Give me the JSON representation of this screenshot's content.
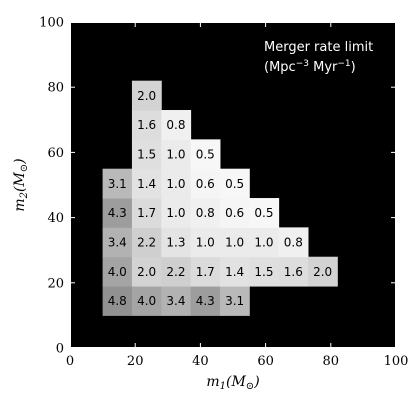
{
  "chart_data": {
    "type": "heatmap",
    "annotation": {
      "line1": "Merger rate limit",
      "line2_prefix": "(Mpc",
      "line2_sup1": "−3",
      "line2_mid": " Myr",
      "line2_sup2": "−1",
      "line2_suffix": ")"
    },
    "xlabel_main": "m",
    "xlabel_sub": "1",
    "xlabel_unit": "(M",
    "xlabel_unit_sub": "⊙",
    "xlabel_close": ")",
    "ylabel_main": "m",
    "ylabel_sub": "2",
    "ylabel_unit": "(M",
    "ylabel_unit_sub": "⊙",
    "ylabel_close": ")",
    "xlim": [
      0,
      100
    ],
    "ylim": [
      0,
      100
    ],
    "xticks": [
      "0",
      "20",
      "40",
      "60",
      "80",
      "100"
    ],
    "yticks": [
      "0",
      "20",
      "40",
      "60",
      "80",
      "100"
    ],
    "background_color": "#000000",
    "cell_size": 9,
    "cells": [
      {
        "x": 10,
        "y": 10,
        "value": "4.8"
      },
      {
        "x": 19,
        "y": 10,
        "value": "4.0"
      },
      {
        "x": 28,
        "y": 10,
        "value": "3.4"
      },
      {
        "x": 37,
        "y": 10,
        "value": "4.3"
      },
      {
        "x": 46,
        "y": 10,
        "value": "3.1"
      },
      {
        "x": 10,
        "y": 19,
        "value": "4.0"
      },
      {
        "x": 19,
        "y": 19,
        "value": "2.0"
      },
      {
        "x": 28,
        "y": 19,
        "value": "2.2"
      },
      {
        "x": 37,
        "y": 19,
        "value": "1.7"
      },
      {
        "x": 46,
        "y": 19,
        "value": "1.4"
      },
      {
        "x": 55,
        "y": 19,
        "value": "1.5"
      },
      {
        "x": 64,
        "y": 19,
        "value": "1.6"
      },
      {
        "x": 73,
        "y": 19,
        "value": "2.0"
      },
      {
        "x": 10,
        "y": 28,
        "value": "3.4"
      },
      {
        "x": 19,
        "y": 28,
        "value": "2.2"
      },
      {
        "x": 28,
        "y": 28,
        "value": "1.3"
      },
      {
        "x": 37,
        "y": 28,
        "value": "1.0"
      },
      {
        "x": 46,
        "y": 28,
        "value": "1.0"
      },
      {
        "x": 55,
        "y": 28,
        "value": "1.0"
      },
      {
        "x": 64,
        "y": 28,
        "value": "0.8"
      },
      {
        "x": 10,
        "y": 37,
        "value": "4.3"
      },
      {
        "x": 19,
        "y": 37,
        "value": "1.7"
      },
      {
        "x": 28,
        "y": 37,
        "value": "1.0"
      },
      {
        "x": 37,
        "y": 37,
        "value": "0.8"
      },
      {
        "x": 46,
        "y": 37,
        "value": "0.6"
      },
      {
        "x": 55,
        "y": 37,
        "value": "0.5"
      },
      {
        "x": 10,
        "y": 46,
        "value": "3.1"
      },
      {
        "x": 19,
        "y": 46,
        "value": "1.4"
      },
      {
        "x": 28,
        "y": 46,
        "value": "1.0"
      },
      {
        "x": 37,
        "y": 46,
        "value": "0.6"
      },
      {
        "x": 46,
        "y": 46,
        "value": "0.5"
      },
      {
        "x": 19,
        "y": 55,
        "value": "1.5"
      },
      {
        "x": 28,
        "y": 55,
        "value": "1.0"
      },
      {
        "x": 37,
        "y": 55,
        "value": "0.5"
      },
      {
        "x": 19,
        "y": 64,
        "value": "1.6"
      },
      {
        "x": 28,
        "y": 64,
        "value": "0.8"
      },
      {
        "x": 19,
        "y": 73,
        "value": "2.0"
      }
    ]
  }
}
